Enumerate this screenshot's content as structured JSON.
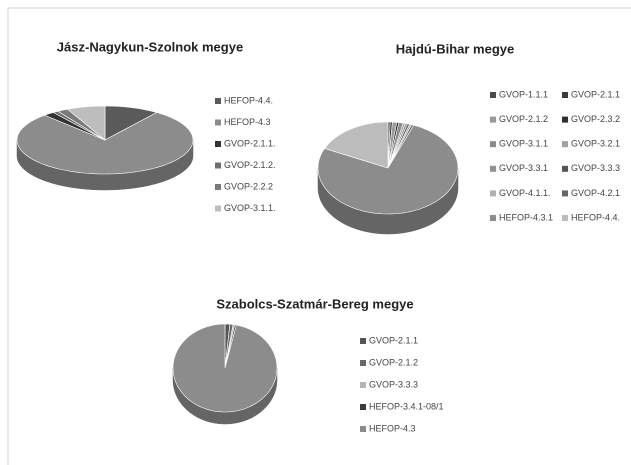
{
  "chart_data": [
    {
      "type": "pie",
      "title": "Jász-Nagykun-Szolnok megye",
      "categories": [
        "HEFOP-4.4.",
        "HEFOP-4.3",
        "GVOP-2.1.1.",
        "GVOP-2.1.2.",
        "GVOP-2.2.2",
        "GVOP-3.1.1."
      ],
      "values": [
        10,
        78,
        2,
        1,
        2,
        7
      ],
      "colors": [
        "#5a5a5a",
        "#8c8c8c",
        "#333333",
        "#6e6e6e",
        "#7a7a7a",
        "#bdbdbd"
      ]
    },
    {
      "type": "pie",
      "title": "Hajdú-Bihar megye",
      "categories": [
        "GVOP-1.1.1",
        "GVOP-2.1.1",
        "GVOP-2.1.2",
        "GVOP-2.3.2",
        "GVOP-3.1.1",
        "GVOP-3.2.1",
        "GVOP-3.3.1",
        "GVOP-3.3.3",
        "GVOP-4.1.1.",
        "GVOP-4.2.1",
        "HEFOP-4.3.1",
        "HEFOP-4.4."
      ],
      "values": [
        0.5,
        0.5,
        1,
        0.5,
        1,
        0.5,
        0.5,
        0.5,
        0.5,
        0.5,
        76,
        18
      ],
      "colors": [
        "#4a4a4a",
        "#3a3a3a",
        "#9a9a9a",
        "#2e2e2e",
        "#8a8a8a",
        "#a0a0a0",
        "#909090",
        "#555555",
        "#b0b0b0",
        "#666666",
        "#8c8c8c",
        "#bcbcbc"
      ]
    },
    {
      "type": "pie",
      "title": "Szabolcs-Szatmár-Bereg megye",
      "categories": [
        "GVOP-2.1.1",
        "GVOP-2.1.2",
        "GVOP-3.3.3",
        "HEFOP-3.4.1-08/1",
        "HEFOP-4.3"
      ],
      "values": [
        1.5,
        1,
        0.5,
        0.5,
        96.5
      ],
      "colors": [
        "#555555",
        "#6a6a6a",
        "#b5b5b5",
        "#3a3a3a",
        "#8c8c8c"
      ]
    }
  ]
}
